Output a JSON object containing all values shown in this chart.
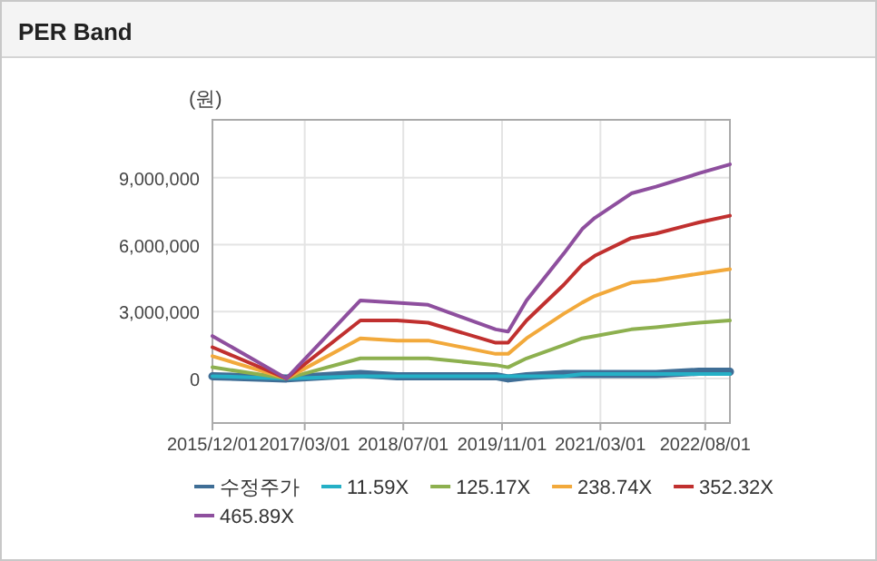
{
  "chart_data": {
    "type": "line",
    "title": "PER Band",
    "ylabel": "(원)",
    "x": [
      "2015-12-01",
      "2016-12-01",
      "2017-12-01",
      "2018-06-01",
      "2018-11-01",
      "2019-10-01",
      "2019-12-01",
      "2020-03-01",
      "2020-09-01",
      "2020-12-01",
      "2021-02-01",
      "2021-08-01",
      "2021-12-01",
      "2022-07-01",
      "2022-12-01"
    ],
    "xlim": [
      "2015-12-01",
      "2022-12-01"
    ],
    "xticks": [
      {
        "value": "2015-12-01",
        "label": "2015/12/01"
      },
      {
        "value": "2017-03-01",
        "label": "2017/03/01"
      },
      {
        "value": "2018-07-01",
        "label": "2018/07/01"
      },
      {
        "value": "2019-11-01",
        "label": "2019/11/01"
      },
      {
        "value": "2021-03-01",
        "label": "2021/03/01"
      },
      {
        "value": "2022-08-01",
        "label": "2022/08/01"
      }
    ],
    "ylim": [
      -2000000,
      11600000
    ],
    "yticks": [
      {
        "value": 0,
        "label": "0"
      },
      {
        "value": 3000000,
        "label": "3,000,000"
      },
      {
        "value": 6000000,
        "label": "6,000,000"
      },
      {
        "value": 9000000,
        "label": "9,000,000"
      }
    ],
    "grid": true,
    "legend": "bottom",
    "marker": "none",
    "line_style": "solid",
    "series": [
      {
        "name": "수정주가",
        "color": "#3f6e96",
        "values": [
          100000,
          0,
          200000,
          100000,
          100000,
          100000,
          0,
          100000,
          200000,
          200000,
          200000,
          200000,
          200000,
          300000,
          300000
        ]
      },
      {
        "name": "11.59X",
        "color": "#25b0c6",
        "values": [
          100000,
          0,
          100000,
          100000,
          100000,
          100000,
          100000,
          100000,
          100000,
          200000,
          200000,
          200000,
          200000,
          200000,
          200000
        ]
      },
      {
        "name": "125.17X",
        "color": "#8db04f",
        "values": [
          500000,
          0,
          900000,
          900000,
          900000,
          600000,
          500000,
          900000,
          1500000,
          1800000,
          1900000,
          2200000,
          2300000,
          2500000,
          2600000
        ]
      },
      {
        "name": "238.74X",
        "color": "#f2a93b",
        "values": [
          1000000,
          0,
          1800000,
          1700000,
          1700000,
          1100000,
          1100000,
          1800000,
          2900000,
          3400000,
          3700000,
          4300000,
          4400000,
          4700000,
          4900000
        ]
      },
      {
        "name": "352.32X",
        "color": "#c0302f",
        "values": [
          1400000,
          0,
          2600000,
          2600000,
          2500000,
          1600000,
          1600000,
          2600000,
          4200000,
          5100000,
          5500000,
          6300000,
          6500000,
          7000000,
          7300000
        ]
      },
      {
        "name": "465.89X",
        "color": "#8e4f9e",
        "values": [
          1900000,
          0,
          3500000,
          3400000,
          3300000,
          2200000,
          2100000,
          3500000,
          5600000,
          6700000,
          7200000,
          8300000,
          8600000,
          9200000,
          9600000
        ]
      }
    ]
  }
}
